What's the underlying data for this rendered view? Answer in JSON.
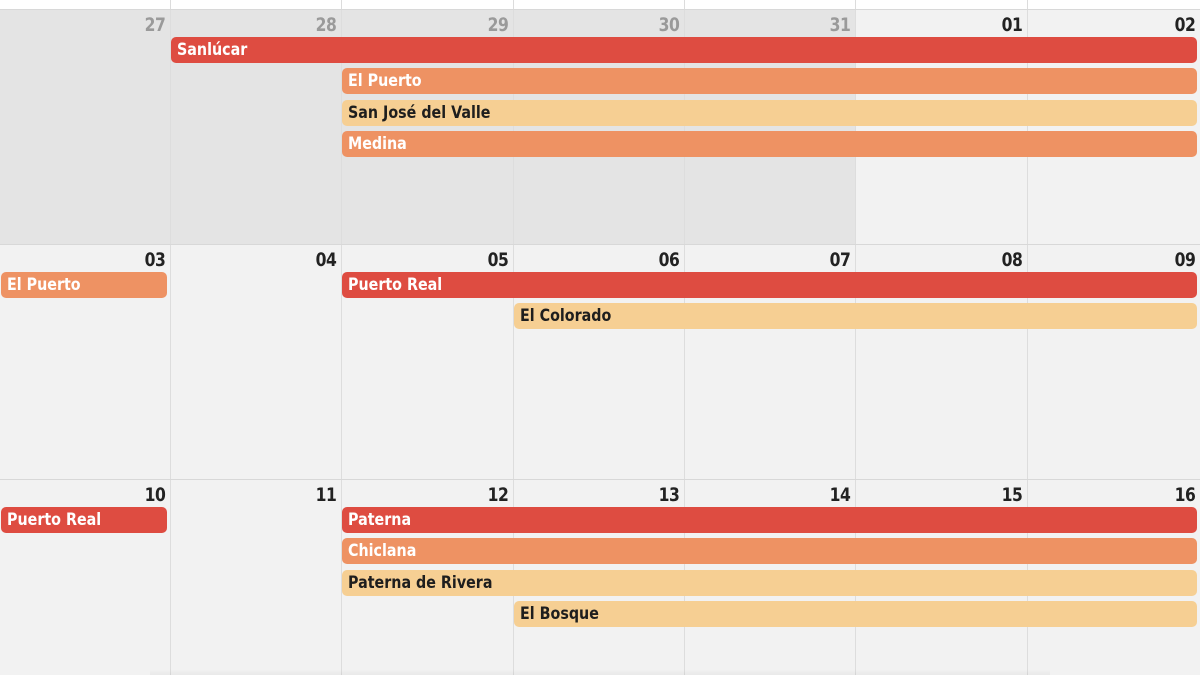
{
  "colors": {
    "event_red": "#de4c41",
    "event_orange": "#ee9263",
    "event_peach": "#f6cf93",
    "cell_background": "#f2f2f2",
    "out_of_month_background": "#e4e4e4"
  },
  "weeks": [
    {
      "days": [
        {
          "number": "27",
          "out_of_month": true
        },
        {
          "number": "28",
          "out_of_month": true
        },
        {
          "number": "29",
          "out_of_month": true
        },
        {
          "number": "30",
          "out_of_month": true
        },
        {
          "number": "31",
          "out_of_month": true
        },
        {
          "number": "01",
          "out_of_month": false
        },
        {
          "number": "02",
          "out_of_month": false
        }
      ],
      "events": [
        {
          "label": "Sanlúcar",
          "color": "red",
          "start_day": 1,
          "end_day": 6,
          "slot": 0
        },
        {
          "label": "El Puerto",
          "color": "orange",
          "start_day": 2,
          "end_day": 6,
          "slot": 1
        },
        {
          "label": "San José del Valle",
          "color": "peach",
          "start_day": 2,
          "end_day": 6,
          "slot": 2
        },
        {
          "label": "Medina",
          "color": "orange",
          "start_day": 2,
          "end_day": 6,
          "slot": 3
        }
      ]
    },
    {
      "days": [
        {
          "number": "03",
          "out_of_month": false
        },
        {
          "number": "04",
          "out_of_month": false
        },
        {
          "number": "05",
          "out_of_month": false
        },
        {
          "number": "06",
          "out_of_month": false
        },
        {
          "number": "07",
          "out_of_month": false
        },
        {
          "number": "08",
          "out_of_month": false
        },
        {
          "number": "09",
          "out_of_month": false
        }
      ],
      "events": [
        {
          "label": "El Puerto",
          "color": "orange",
          "start_day": 0,
          "end_day": 0,
          "slot": 0
        },
        {
          "label": "Puerto Real",
          "color": "red",
          "start_day": 2,
          "end_day": 6,
          "slot": 0
        },
        {
          "label": "El Colorado",
          "color": "peach",
          "start_day": 3,
          "end_day": 6,
          "slot": 1
        }
      ]
    },
    {
      "days": [
        {
          "number": "10",
          "out_of_month": false
        },
        {
          "number": "11",
          "out_of_month": false
        },
        {
          "number": "12",
          "out_of_month": false
        },
        {
          "number": "13",
          "out_of_month": false
        },
        {
          "number": "14",
          "out_of_month": false
        },
        {
          "number": "15",
          "out_of_month": false
        },
        {
          "number": "16",
          "out_of_month": false
        }
      ],
      "events": [
        {
          "label": "Puerto Real",
          "color": "red",
          "start_day": 0,
          "end_day": 0,
          "slot": 0
        },
        {
          "label": "Paterna",
          "color": "red",
          "start_day": 2,
          "end_day": 6,
          "slot": 0
        },
        {
          "label": "Chiclana",
          "color": "orange",
          "start_day": 2,
          "end_day": 6,
          "slot": 1
        },
        {
          "label": "Paterna de Rivera",
          "color": "peach",
          "start_day": 2,
          "end_day": 6,
          "slot": 2
        },
        {
          "label": "El Bosque",
          "color": "peach",
          "start_day": 3,
          "end_day": 6,
          "slot": 3
        }
      ]
    }
  ]
}
